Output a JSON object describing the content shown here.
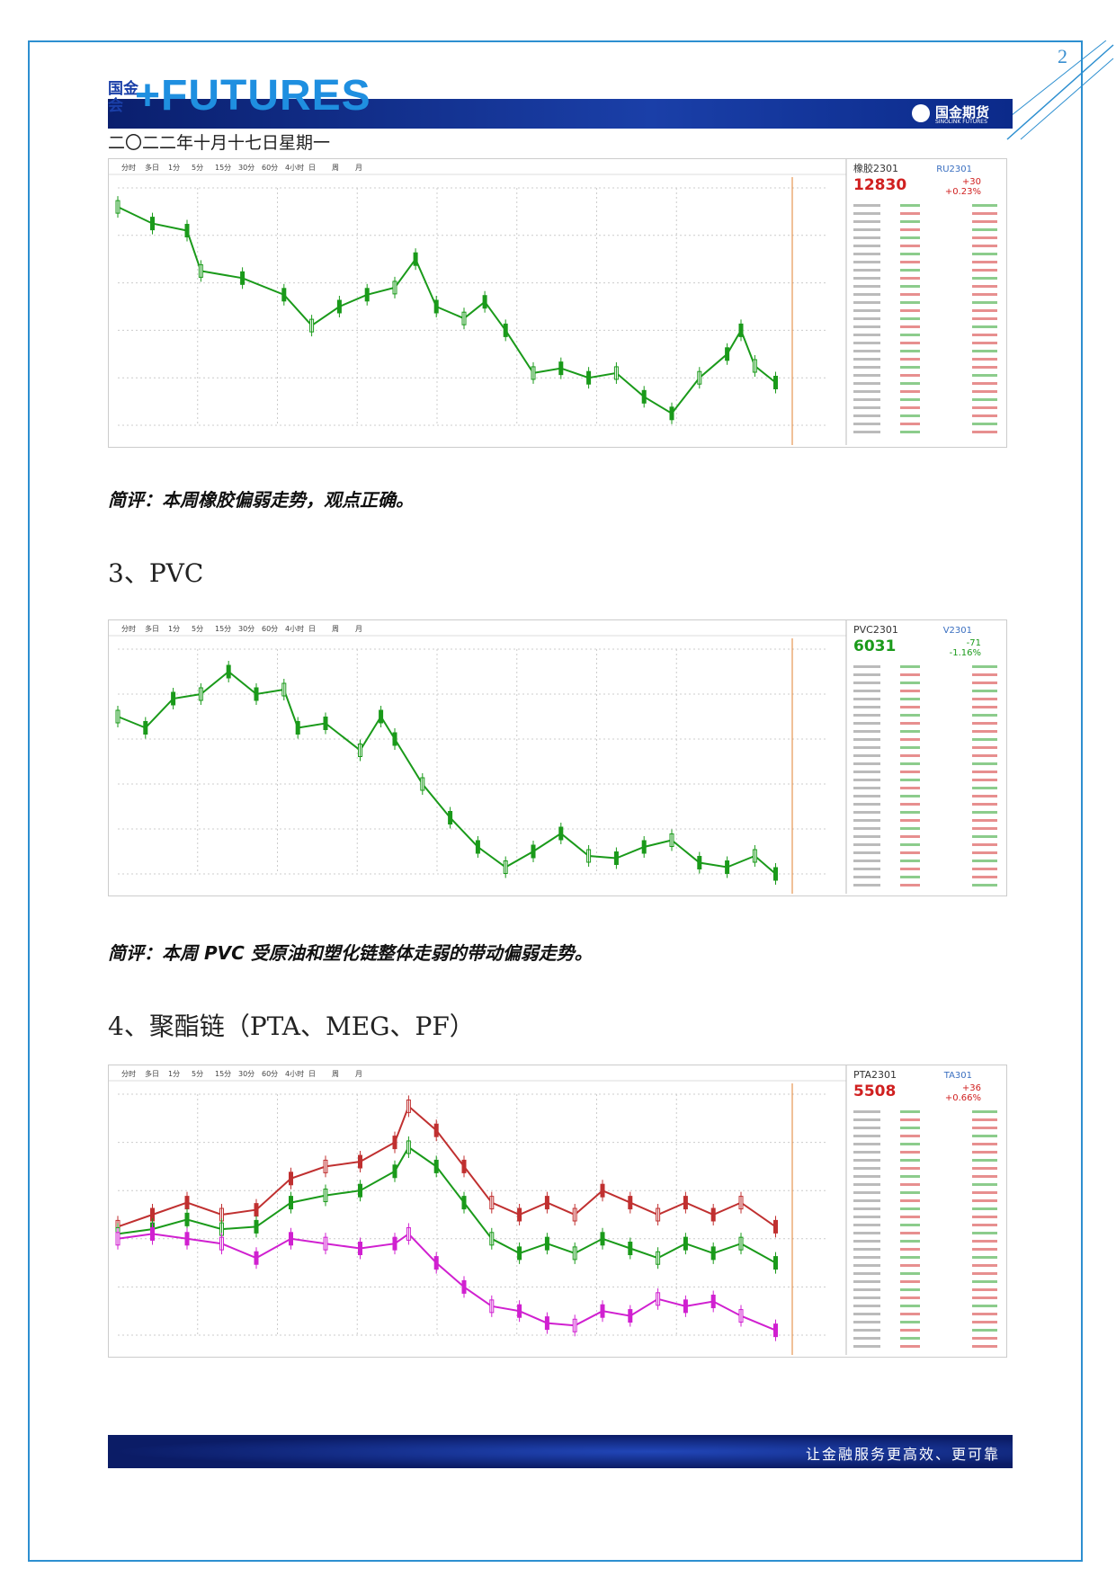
{
  "header": {
    "logo_cn": "国金",
    "logo_cn2": "会",
    "logo_en": "+FUTURES",
    "brand": "国金期货",
    "brand_en": "SINOLINK FUTURES"
  },
  "page_number": "2",
  "date": "二〇二二年十月十七日星期一",
  "toolbar": [
    "分时",
    "多日",
    "1分",
    "5分",
    "15分",
    "30分",
    "60分",
    "4小时",
    "日",
    "周",
    "月"
  ],
  "charts": [
    {
      "name": "橡胶2301",
      "price": "12830",
      "code": "RU2301",
      "change": "+30",
      "pct": "+0.23%"
    },
    {
      "name": "PVC2301",
      "price": "6031",
      "code": "V2301",
      "change": "-71",
      "pct": "-1.16%"
    },
    {
      "name": "PTA2301",
      "price": "5508",
      "code": "TA301",
      "change": "+36",
      "pct": "+0.66%"
    }
  ],
  "sections": [
    {
      "comment": "简评：本周橡胶偏弱走势，观点正确。"
    },
    {
      "heading": "3、PVC",
      "comment": "简评：本周 PVC 受原油和塑化链整体走弱的带动偏弱走势。"
    },
    {
      "heading": "4、聚酯链（PTA、MEG、PF）"
    }
  ],
  "footer": "让金融服务更高效、更可靠"
}
